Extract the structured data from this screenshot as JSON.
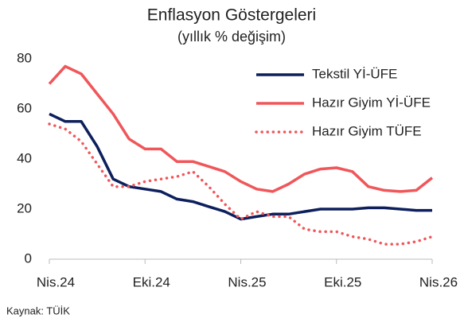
{
  "chart_data": {
    "type": "line",
    "title": "Enflasyon Göstergeleri",
    "subtitle": "(yıllık % değişim)",
    "source": "Kaynak: TÜİK",
    "categories": [
      "Nis.24",
      null,
      null,
      null,
      null,
      null,
      "Eki.24",
      null,
      null,
      null,
      null,
      null,
      "Nis.25",
      null,
      null,
      null,
      null,
      null,
      "Eki.25",
      null,
      null,
      null,
      null,
      null,
      "Nis.26"
    ],
    "series": [
      {
        "name": "Tekstil Yİ-ÜFE",
        "color": "#0d1f5c",
        "style": "solid",
        "values": [
          58,
          55,
          55,
          45,
          32,
          29,
          28,
          27,
          24,
          23,
          21,
          19,
          16,
          17,
          18,
          18,
          19,
          20,
          20,
          20,
          20.5,
          20.5,
          20,
          19.5,
          19.5
        ]
      },
      {
        "name": "Hazır Giyim Yİ-ÜFE",
        "color": "#f0565a",
        "style": "solid",
        "values": [
          70,
          77,
          74,
          66,
          58,
          48,
          44,
          44,
          39,
          39,
          37,
          35,
          31,
          28,
          27,
          30,
          34,
          36,
          36.5,
          35,
          29,
          27.5,
          27,
          27.5,
          32.5
        ]
      },
      {
        "name": "Hazır Giyim TÜFE",
        "color": "#f0565a",
        "style": "dotted",
        "values": [
          54,
          52,
          47,
          38,
          29,
          29,
          31,
          32,
          33,
          35,
          29,
          22,
          16,
          19,
          17,
          17,
          12,
          11,
          11,
          9,
          8,
          6,
          6,
          7,
          9
        ]
      }
    ],
    "ylim": [
      0,
      80
    ],
    "yticks": [
      0,
      20,
      40,
      60,
      80
    ],
    "grid": false,
    "legend": "upper right"
  }
}
